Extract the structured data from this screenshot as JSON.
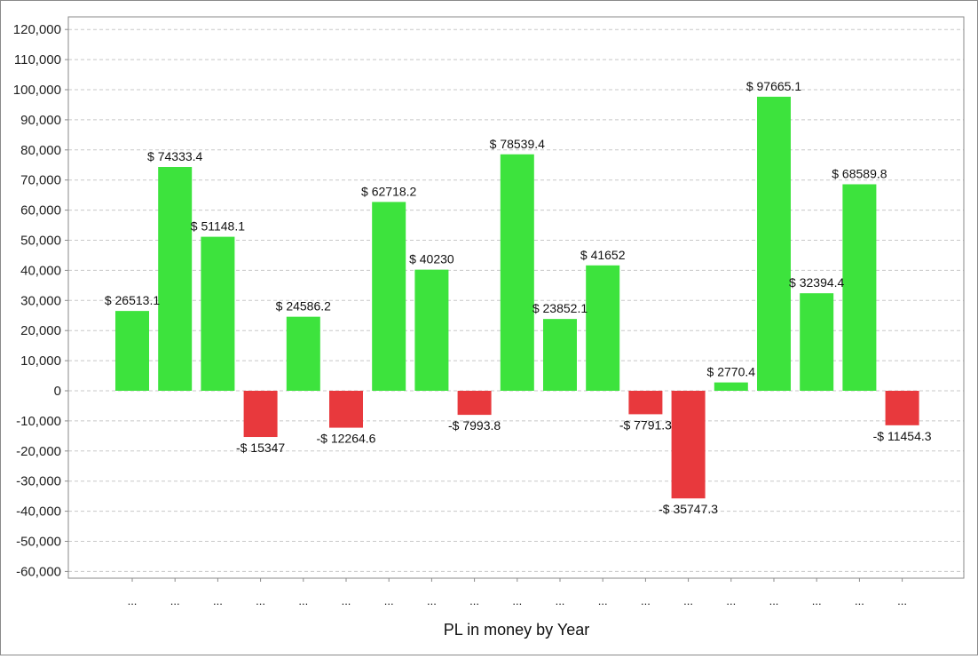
{
  "chart_data": {
    "type": "bar",
    "title": "",
    "xlabel": "PL in money by Year",
    "ylabel": "",
    "ylim": [
      -65000,
      125000
    ],
    "yticks": [
      120000,
      110000,
      100000,
      90000,
      80000,
      70000,
      60000,
      50000,
      40000,
      30000,
      20000,
      10000,
      0,
      -10000,
      -20000,
      -30000,
      -40000,
      -50000,
      -60000
    ],
    "ytick_labels": [
      "120,000",
      "110,000",
      "100,000",
      "90,000",
      "80,000",
      "70,000",
      "60,000",
      "50,000",
      "40,000",
      "30,000",
      "20,000",
      "10,000",
      "0",
      "-10,000",
      "-20,000",
      "-30,000",
      "-40,000",
      "-50,000",
      "-60,000"
    ],
    "grid": true,
    "legend": "none",
    "categories": [
      "...",
      "...",
      "...",
      "...",
      "...",
      "...",
      "...",
      "...",
      "...",
      "...",
      "...",
      "...",
      "...",
      "...",
      "...",
      "...",
      "...",
      "...",
      "..."
    ],
    "values": [
      26513.1,
      74333.4,
      51148.1,
      -15347,
      24586.2,
      -12264.6,
      62718.2,
      40230,
      -7993.8,
      78539.4,
      23852.1,
      41652,
      -7791.3,
      -35747.3,
      2770.4,
      97665.1,
      32394.4,
      68589.8,
      -11454.3
    ],
    "data_labels": [
      "$ 26513.1",
      "$ 74333.4",
      "$ 51148.1",
      "-$ 15347",
      "$ 24586.2",
      "-$ 12264.6",
      "$ 62718.2",
      "$ 40230",
      "-$ 7993.8",
      "$ 78539.4",
      "$ 23852.1",
      "$ 41652",
      "-$ 7791.3",
      "-$ 35747.3",
      "$ 2770.4",
      "$ 97665.1",
      "$ 32394.4",
      "$ 68589.8",
      "-$ 11454.3"
    ],
    "colors": {
      "positive": "#3de33d",
      "negative": "#e8393d",
      "grid": "#c8c8c8",
      "axis": "#8a8a8a"
    }
  }
}
